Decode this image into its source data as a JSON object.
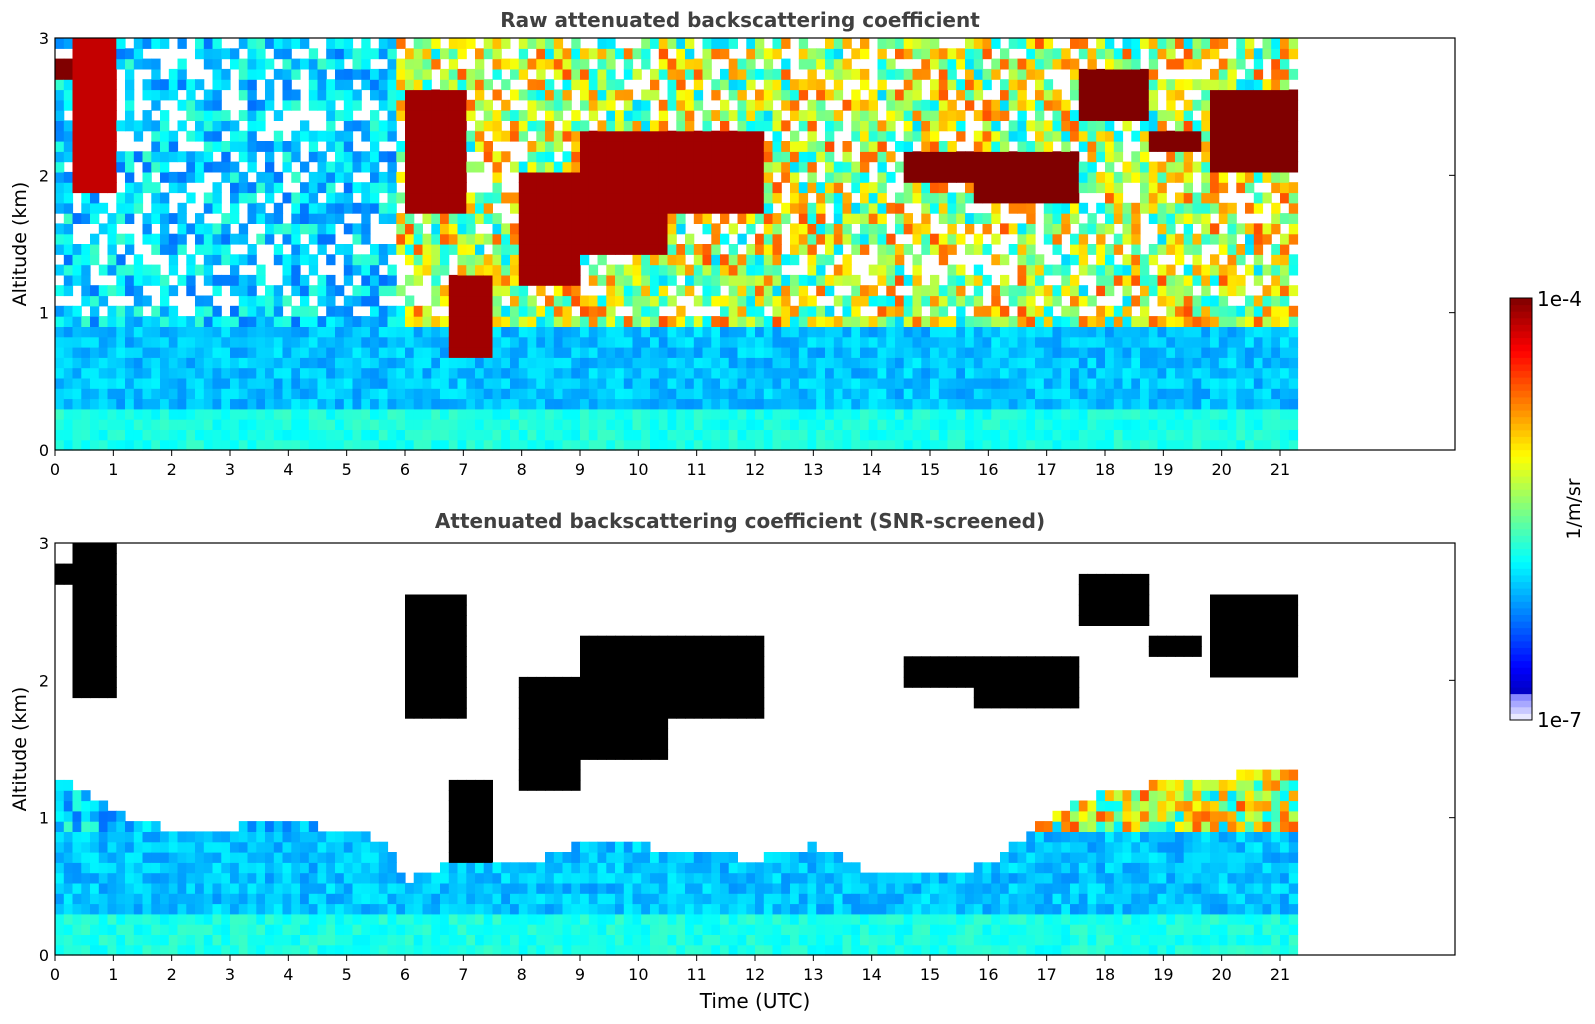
{
  "chart_data": [
    {
      "type": "heatmap",
      "title": "Raw attenuated backscattering coefficient",
      "xlabel": "",
      "ylabel": "Altitude (km)",
      "xlim": [
        0,
        24
      ],
      "ylim": [
        0,
        3
      ],
      "xticks": [
        0,
        1,
        2,
        3,
        4,
        5,
        6,
        7,
        8,
        9,
        10,
        11,
        12,
        13,
        14,
        15,
        16,
        17,
        18,
        19,
        20,
        21
      ],
      "yticks": [
        0,
        1,
        2,
        3
      ],
      "data_extent_hours": [
        0,
        21.3
      ],
      "color_scale": "log10 jet, 1e-7 to 1e-4 1/m/sr",
      "screened": false,
      "cloud_layers": [
        {
          "time": [
            0.05,
            0.3
          ],
          "altitude": [
            2.7,
            2.85
          ],
          "log10_value": -4.0
        },
        {
          "time": [
            0.35,
            1.0
          ],
          "altitude": [
            1.9,
            3.0
          ],
          "log10_value": -4.2
        },
        {
          "time": [
            6.0,
            7.0
          ],
          "altitude": [
            1.7,
            2.6
          ],
          "log10_value": -4.1
        },
        {
          "time": [
            6.8,
            7.5
          ],
          "altitude": [
            0.7,
            1.3
          ],
          "log10_value": -4.1
        },
        {
          "time": [
            8.0,
            9.0
          ],
          "altitude": [
            1.2,
            2.0
          ],
          "log10_value": -4.1
        },
        {
          "time": [
            9.0,
            10.5
          ],
          "altitude": [
            1.4,
            2.3
          ],
          "log10_value": -4.1
        },
        {
          "time": [
            10.5,
            12.2
          ],
          "altitude": [
            1.7,
            2.3
          ],
          "log10_value": -4.1
        },
        {
          "time": [
            14.6,
            15.8
          ],
          "altitude": [
            1.95,
            2.15
          ],
          "log10_value": -4.0
        },
        {
          "time": [
            15.8,
            17.5
          ],
          "altitude": [
            1.8,
            2.2
          ],
          "log10_value": -4.0
        },
        {
          "time": [
            17.5,
            18.7
          ],
          "altitude": [
            2.4,
            2.75
          ],
          "log10_value": -4.0
        },
        {
          "time": [
            18.7,
            19.7
          ],
          "altitude": [
            2.2,
            2.35
          ],
          "log10_value": -4.0
        },
        {
          "time": [
            19.8,
            21.3
          ],
          "altitude": [
            2.0,
            2.6
          ],
          "log10_value": -4.0
        }
      ]
    },
    {
      "type": "heatmap",
      "title": "Attenuated backscattering coefficient (SNR-screened)",
      "xlabel": "Time (UTC)",
      "ylabel": "Altitude (km)",
      "xlim": [
        0,
        24
      ],
      "ylim": [
        0,
        3
      ],
      "xticks": [
        0,
        1,
        2,
        3,
        4,
        5,
        6,
        7,
        8,
        9,
        10,
        11,
        12,
        13,
        14,
        15,
        16,
        17,
        18,
        19,
        20,
        21
      ],
      "yticks": [
        0,
        1,
        2,
        3
      ],
      "data_extent_hours": [
        0,
        21.3
      ],
      "color_scale": "log10 jet, 1e-7 to 1e-4 1/m/sr; saturated values shown black",
      "screened": true,
      "boundary_layer_top_km": [
        [
          0,
          1.3
        ],
        [
          1.5,
          0.95
        ],
        [
          2.5,
          0.9
        ],
        [
          4,
          0.98
        ],
        [
          5,
          0.88
        ],
        [
          5.7,
          0.85
        ],
        [
          6,
          0.55
        ],
        [
          7,
          0.7
        ],
        [
          8,
          0.65
        ],
        [
          9,
          0.8
        ],
        [
          10,
          0.8
        ],
        [
          11,
          0.75
        ],
        [
          12,
          0.7
        ],
        [
          13,
          0.8
        ],
        [
          14,
          0.6
        ],
        [
          15,
          0.6
        ],
        [
          16,
          0.65
        ],
        [
          17,
          1.0
        ],
        [
          18,
          1.2
        ],
        [
          19,
          1.25
        ],
        [
          20,
          1.3
        ],
        [
          21,
          1.35
        ]
      ]
    }
  ],
  "colorbar": {
    "max_label": "1e-4",
    "min_label": "1e-7",
    "unit_label": "1/m/sr"
  }
}
